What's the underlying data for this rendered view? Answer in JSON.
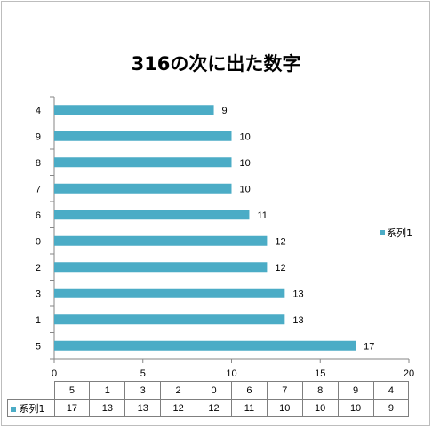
{
  "chart_data": {
    "type": "bar",
    "orientation": "horizontal",
    "title": "316の次に出た数字",
    "categories": [
      "5",
      "1",
      "3",
      "2",
      "0",
      "6",
      "7",
      "8",
      "9",
      "4"
    ],
    "series": [
      {
        "name": "系列1",
        "values": [
          17,
          13,
          13,
          12,
          12,
          11,
          10,
          10,
          10,
          9
        ]
      }
    ],
    "xlim": [
      0,
      20
    ],
    "x_ticks": [
      "0",
      "5",
      "10",
      "15",
      "20"
    ],
    "grid": false,
    "legend": "right",
    "data_labels": true,
    "data_table": true
  },
  "colors": {
    "bar": "#4bacc6",
    "axis": "#868686"
  }
}
